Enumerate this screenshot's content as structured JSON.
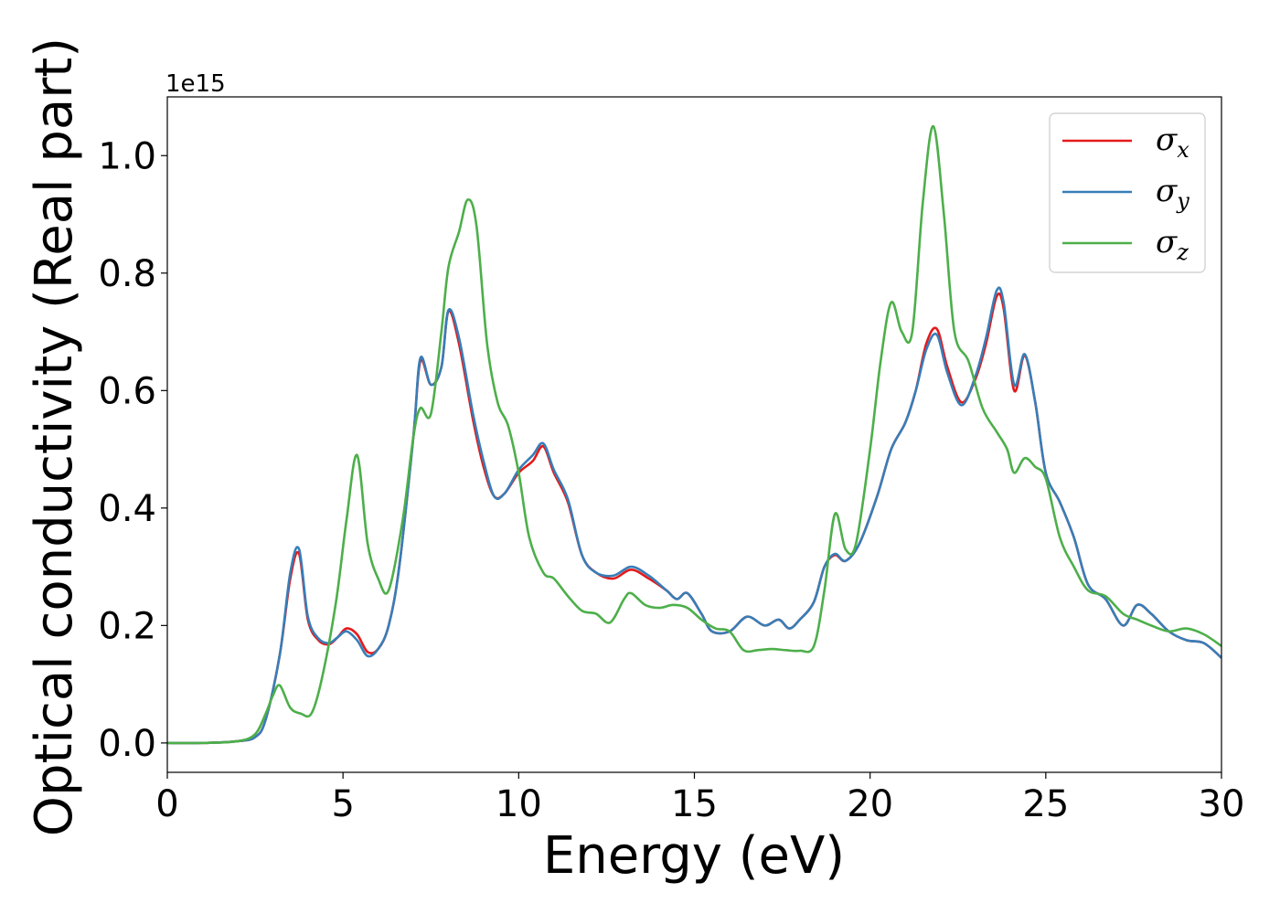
{
  "chart_data": {
    "type": "line",
    "title": "",
    "xlabel": "Energy (eV)",
    "ylabel": "Optical conductivity (Real part)",
    "y_offset_label": "1e15",
    "xlim": [
      0,
      30
    ],
    "ylim": [
      -0.05,
      1.1
    ],
    "xticks": [
      0,
      5,
      10,
      15,
      20,
      25,
      30
    ],
    "xtick_labels": [
      "0",
      "5",
      "10",
      "15",
      "20",
      "25",
      "30"
    ],
    "yticks": [
      0.0,
      0.2,
      0.4,
      0.6,
      0.8,
      1.0
    ],
    "ytick_labels": [
      "0.0",
      "0.2",
      "0.4",
      "0.6",
      "0.8",
      "1.0"
    ],
    "grid": false,
    "legend_position": "top-right",
    "series": [
      {
        "name": "σ_x",
        "label_main": "σ",
        "label_sub": "x",
        "color": "#e41a1c",
        "x": [
          0,
          1,
          2,
          2.5,
          2.8,
          3.2,
          3.5,
          3.75,
          4.0,
          4.3,
          4.6,
          4.85,
          5.1,
          5.4,
          5.7,
          6.0,
          6.3,
          6.6,
          7.0,
          7.2,
          7.5,
          7.8,
          8.0,
          8.3,
          8.7,
          9.0,
          9.3,
          9.6,
          10.0,
          10.4,
          10.7,
          11.0,
          11.4,
          11.8,
          12.2,
          12.7,
          13.2,
          13.7,
          14.2,
          14.5,
          14.8,
          15.2,
          15.5,
          16.0,
          16.5,
          17.0,
          17.4,
          17.7,
          18.0,
          18.4,
          18.7,
          19.0,
          19.3,
          19.7,
          20.2,
          20.6,
          21.0,
          21.3,
          21.6,
          21.9,
          22.2,
          22.6,
          23.0,
          23.3,
          23.6,
          23.8,
          24.1,
          24.4,
          24.7,
          25.0,
          25.4,
          25.8,
          26.2,
          26.7,
          27.2,
          27.6,
          28.0,
          28.5,
          29.0,
          29.5,
          30.0
        ],
        "y": [
          0.0,
          0.0,
          0.003,
          0.01,
          0.04,
          0.15,
          0.28,
          0.322,
          0.21,
          0.175,
          0.168,
          0.18,
          0.195,
          0.185,
          0.155,
          0.16,
          0.2,
          0.3,
          0.52,
          0.65,
          0.61,
          0.64,
          0.735,
          0.68,
          0.55,
          0.47,
          0.42,
          0.425,
          0.46,
          0.48,
          0.505,
          0.46,
          0.41,
          0.32,
          0.29,
          0.28,
          0.295,
          0.28,
          0.26,
          0.245,
          0.255,
          0.22,
          0.19,
          0.19,
          0.215,
          0.2,
          0.21,
          0.195,
          0.21,
          0.24,
          0.3,
          0.32,
          0.31,
          0.34,
          0.42,
          0.5,
          0.545,
          0.6,
          0.68,
          0.705,
          0.64,
          0.58,
          0.62,
          0.68,
          0.76,
          0.74,
          0.6,
          0.66,
          0.58,
          0.46,
          0.41,
          0.35,
          0.27,
          0.245,
          0.2,
          0.235,
          0.22,
          0.19,
          0.175,
          0.17,
          0.145
        ]
      },
      {
        "name": "σ_y",
        "label_main": "σ",
        "label_sub": "y",
        "color": "#377eb8",
        "x": [
          0,
          1,
          2,
          2.5,
          2.8,
          3.2,
          3.5,
          3.75,
          4.0,
          4.3,
          4.6,
          4.85,
          5.1,
          5.4,
          5.7,
          6.0,
          6.3,
          6.6,
          7.0,
          7.2,
          7.5,
          7.8,
          8.0,
          8.3,
          8.7,
          9.0,
          9.3,
          9.6,
          10.0,
          10.4,
          10.7,
          11.0,
          11.4,
          11.8,
          12.2,
          12.7,
          13.2,
          13.7,
          14.2,
          14.5,
          14.8,
          15.2,
          15.5,
          16.0,
          16.5,
          17.0,
          17.4,
          17.7,
          18.0,
          18.4,
          18.7,
          19.0,
          19.3,
          19.7,
          20.2,
          20.6,
          21.0,
          21.3,
          21.6,
          21.9,
          22.2,
          22.6,
          23.0,
          23.3,
          23.6,
          23.8,
          24.1,
          24.4,
          24.7,
          25.0,
          25.4,
          25.8,
          26.2,
          26.7,
          27.2,
          27.6,
          28.0,
          28.5,
          29.0,
          29.5,
          30.0
        ],
        "y": [
          0.0,
          0.0,
          0.003,
          0.01,
          0.04,
          0.15,
          0.29,
          0.33,
          0.215,
          0.178,
          0.17,
          0.18,
          0.19,
          0.175,
          0.148,
          0.16,
          0.2,
          0.3,
          0.52,
          0.655,
          0.61,
          0.64,
          0.737,
          0.69,
          0.56,
          0.48,
          0.42,
          0.425,
          0.465,
          0.49,
          0.51,
          0.465,
          0.415,
          0.32,
          0.29,
          0.285,
          0.3,
          0.285,
          0.26,
          0.245,
          0.255,
          0.22,
          0.19,
          0.19,
          0.215,
          0.2,
          0.21,
          0.195,
          0.21,
          0.24,
          0.3,
          0.322,
          0.31,
          0.34,
          0.42,
          0.5,
          0.545,
          0.6,
          0.67,
          0.695,
          0.63,
          0.575,
          0.625,
          0.69,
          0.77,
          0.75,
          0.61,
          0.662,
          0.58,
          0.46,
          0.41,
          0.35,
          0.27,
          0.245,
          0.2,
          0.235,
          0.22,
          0.19,
          0.175,
          0.17,
          0.145
        ]
      },
      {
        "name": "σ_z",
        "label_main": "σ",
        "label_sub": "z",
        "color": "#4daf4a",
        "x": [
          0,
          1,
          2,
          2.5,
          2.8,
          3.0,
          3.2,
          3.5,
          3.8,
          4.1,
          4.4,
          4.8,
          5.1,
          5.4,
          5.7,
          6.0,
          6.3,
          6.7,
          7.0,
          7.2,
          7.5,
          7.8,
          8.0,
          8.3,
          8.55,
          8.8,
          9.1,
          9.4,
          9.7,
          10.0,
          10.3,
          10.7,
          11.0,
          11.4,
          11.8,
          12.2,
          12.6,
          13.0,
          13.2,
          13.6,
          14.0,
          14.4,
          14.8,
          15.2,
          15.6,
          16.0,
          16.4,
          16.8,
          17.2,
          17.6,
          18.0,
          18.4,
          18.7,
          19.0,
          19.3,
          19.6,
          20.0,
          20.3,
          20.6,
          20.9,
          21.2,
          21.5,
          21.8,
          22.1,
          22.4,
          22.8,
          23.2,
          23.6,
          23.9,
          24.1,
          24.4,
          24.7,
          25.0,
          25.4,
          25.8,
          26.2,
          26.7,
          27.2,
          27.6,
          28.0,
          28.5,
          29.0,
          29.5,
          30.0
        ],
        "y": [
          0.0,
          0.0,
          0.003,
          0.015,
          0.05,
          0.08,
          0.098,
          0.06,
          0.05,
          0.05,
          0.11,
          0.24,
          0.38,
          0.49,
          0.34,
          0.28,
          0.26,
          0.38,
          0.52,
          0.57,
          0.56,
          0.7,
          0.81,
          0.87,
          0.925,
          0.88,
          0.68,
          0.58,
          0.54,
          0.46,
          0.35,
          0.29,
          0.28,
          0.25,
          0.225,
          0.22,
          0.205,
          0.245,
          0.255,
          0.235,
          0.23,
          0.235,
          0.23,
          0.21,
          0.195,
          0.19,
          0.158,
          0.158,
          0.16,
          0.158,
          0.157,
          0.165,
          0.26,
          0.39,
          0.33,
          0.34,
          0.5,
          0.65,
          0.75,
          0.7,
          0.7,
          0.92,
          1.05,
          0.9,
          0.7,
          0.65,
          0.57,
          0.53,
          0.5,
          0.46,
          0.485,
          0.47,
          0.45,
          0.35,
          0.3,
          0.26,
          0.25,
          0.22,
          0.21,
          0.2,
          0.19,
          0.195,
          0.185,
          0.165
        ]
      }
    ]
  }
}
